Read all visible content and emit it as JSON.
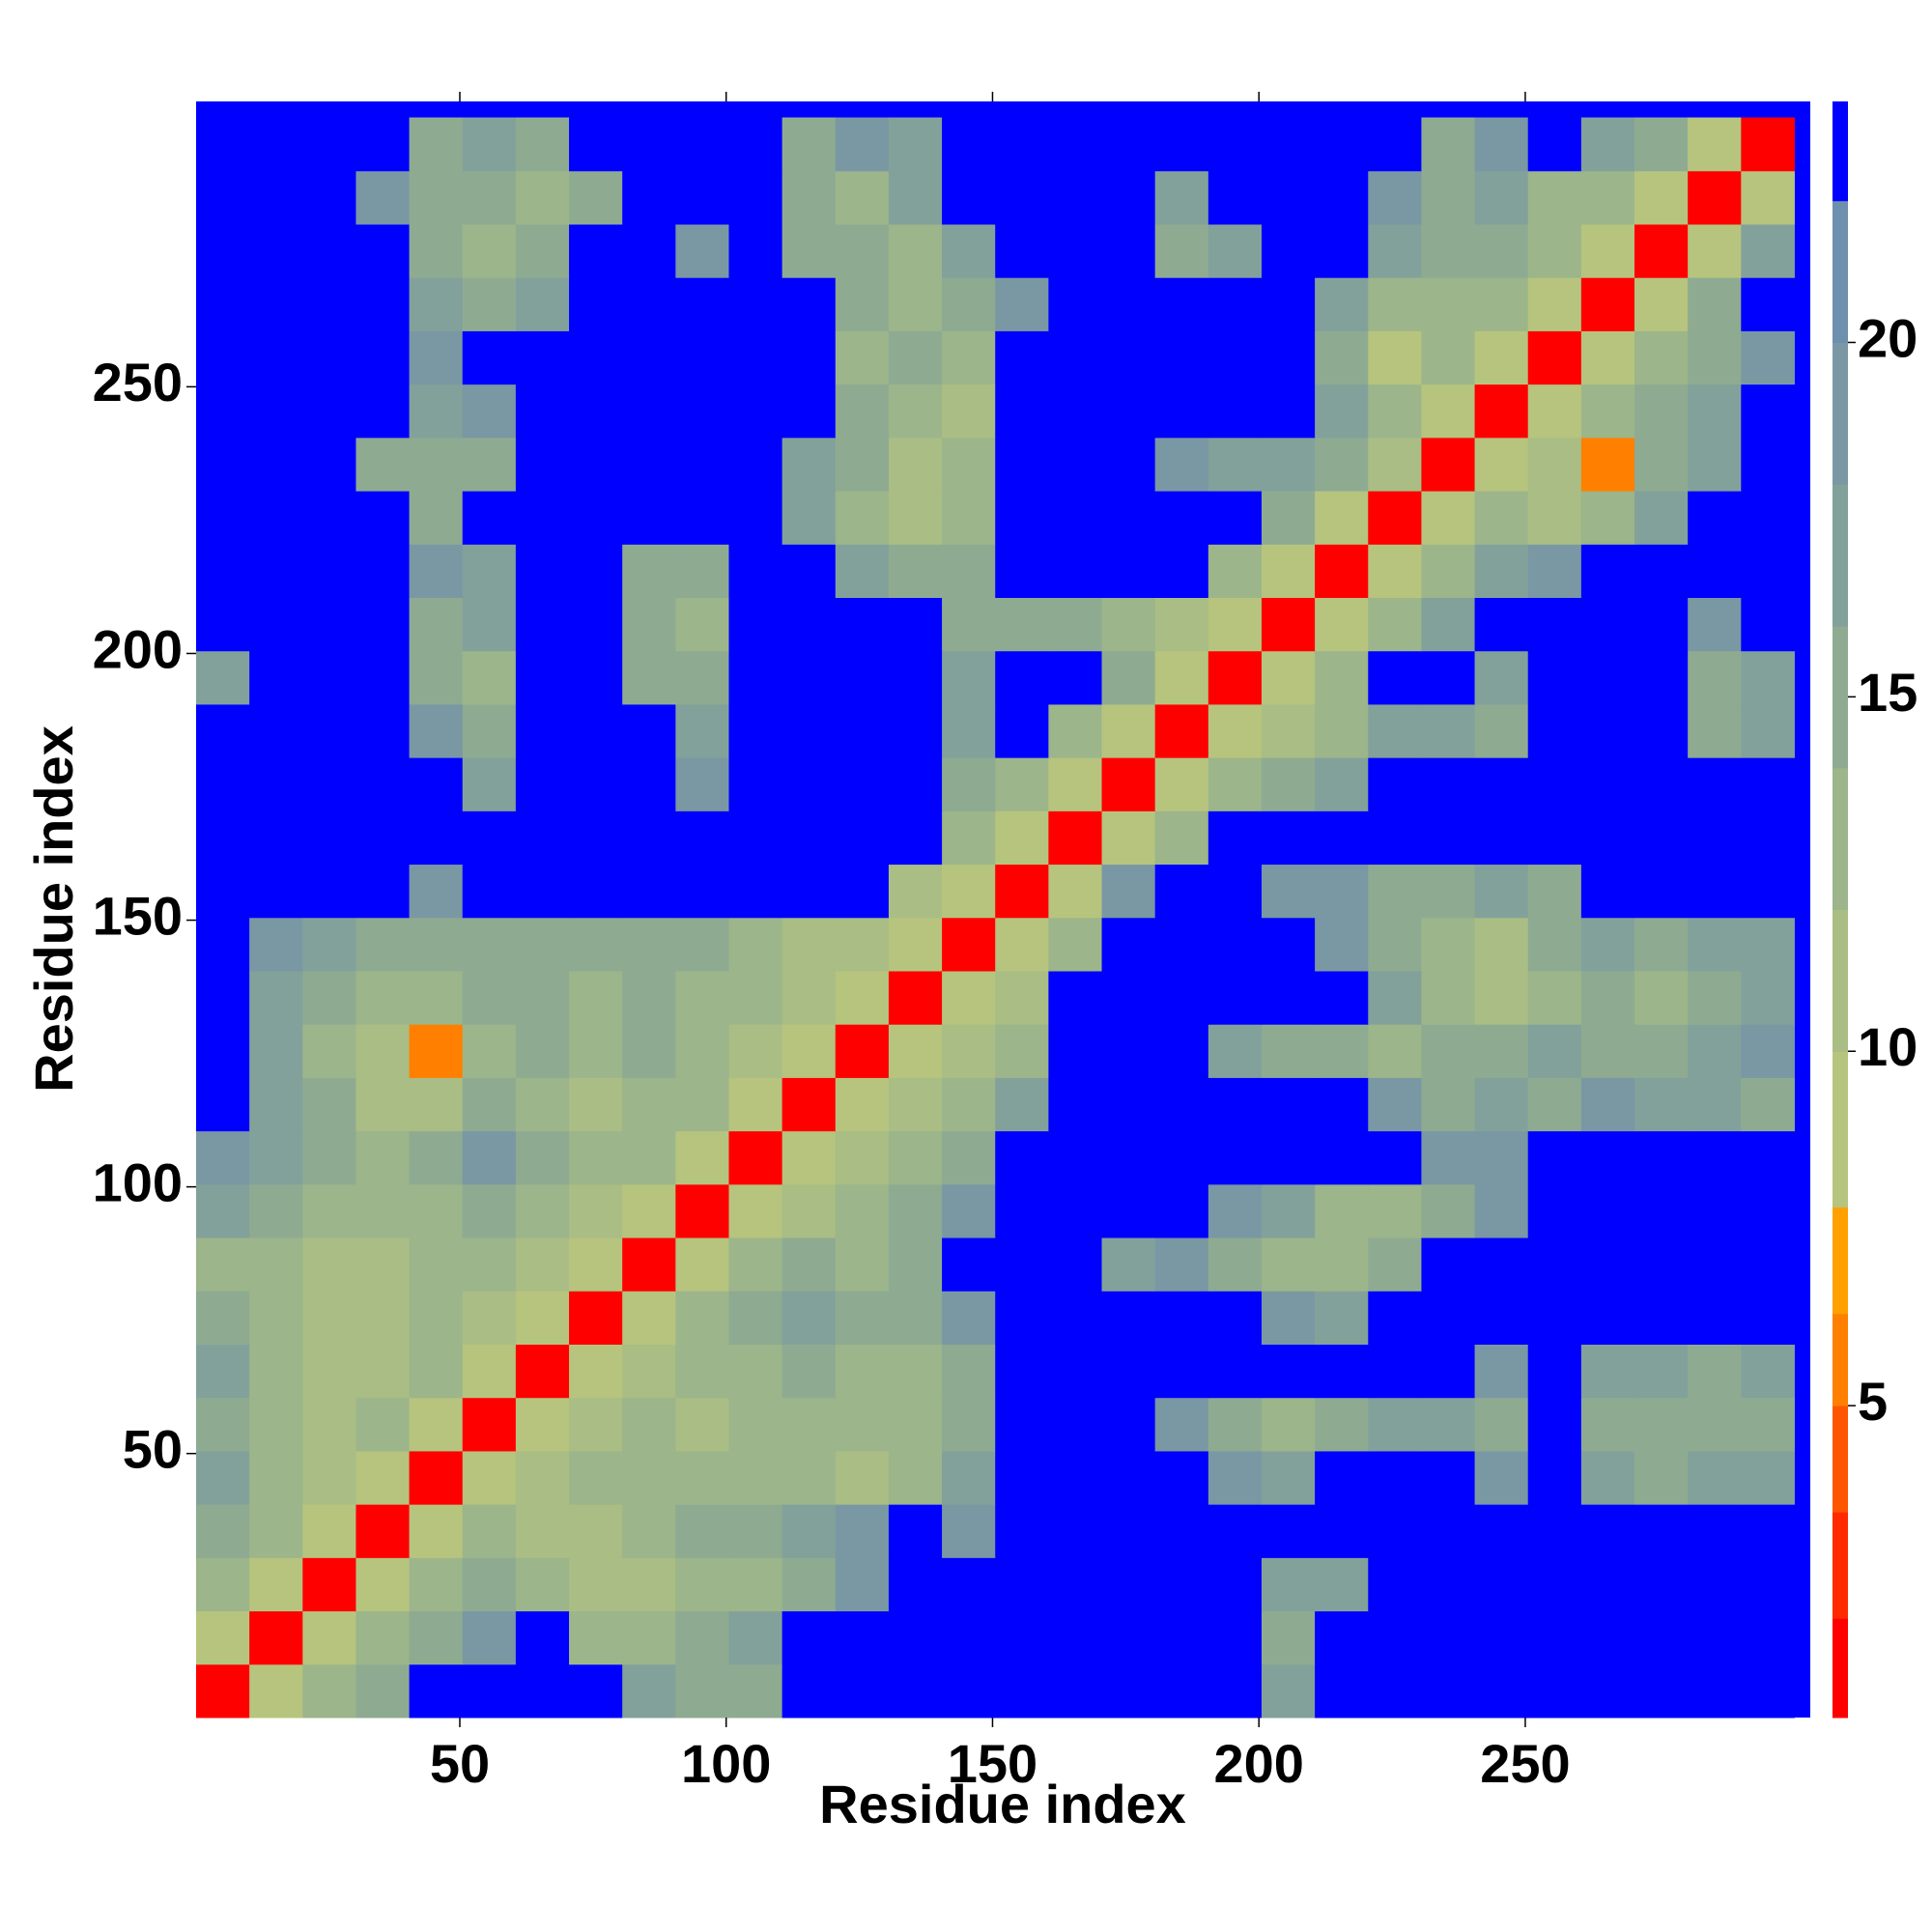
{
  "chart_data": {
    "type": "heatmap",
    "x_label": "Residue index",
    "y_label": "Residue index",
    "xlim": [
      0.5,
      303.5
    ],
    "ylim": [
      0.5,
      303.5
    ],
    "xticks": [
      50,
      100,
      150,
      200,
      250
    ],
    "yticks": [
      50,
      100,
      150,
      200,
      250
    ],
    "bin_edges": [
      0.5,
      10.5,
      20.5,
      30.5,
      40.5,
      50.5,
      60.5,
      70.5,
      80.5,
      90.5,
      100.5,
      110.5,
      120.5,
      130.5,
      140.5,
      150.5,
      160.5,
      170.5,
      180.5,
      190.5,
      200.5,
      210.5,
      220.5,
      230.5,
      240.5,
      250.5,
      260.5,
      270.5,
      280.5,
      290.5,
      300.5
    ],
    "background": "#0000ff",
    "colorbar": {
      "lim": [
        0.6,
        23.4
      ],
      "ticks": [
        5,
        10,
        15,
        20
      ],
      "edges": [
        0.6,
        2,
        3.5,
        5,
        6.3,
        7.8,
        10,
        12,
        14,
        16,
        18,
        20,
        22,
        23.4
      ],
      "colors": [
        "#ff0000",
        "#ff2a00",
        "#ff5500",
        "#ff8000",
        "#ffa000",
        "#b6c47e",
        "#a9bd84",
        "#9cb58a",
        "#8eab92",
        "#83a19b",
        "#7998a4",
        "#6f8fae",
        "#0000ff"
      ]
    },
    "z": [
      [
        2,
        8,
        14,
        16,
        24,
        24,
        24,
        24,
        17,
        16,
        16,
        24,
        24,
        24,
        24,
        24,
        24,
        24,
        24,
        24,
        17,
        24,
        24,
        24,
        24,
        24,
        24,
        24,
        24,
        24
      ],
      [
        8,
        2,
        8,
        14,
        16,
        19,
        24,
        14,
        14,
        16,
        17,
        24,
        24,
        24,
        24,
        24,
        24,
        24,
        24,
        24,
        16,
        24,
        24,
        24,
        24,
        24,
        24,
        24,
        24,
        24
      ],
      [
        14,
        8,
        2,
        8,
        14,
        16,
        14,
        12,
        12,
        14,
        14,
        16,
        19,
        24,
        24,
        24,
        24,
        24,
        24,
        24,
        17,
        17,
        24,
        24,
        24,
        24,
        24,
        24,
        24,
        24
      ],
      [
        16,
        14,
        8,
        2,
        8,
        14,
        12,
        12,
        14,
        16,
        16,
        17,
        19,
        24,
        19,
        24,
        24,
        24,
        24,
        24,
        24,
        24,
        24,
        24,
        24,
        24,
        24,
        24,
        24,
        24
      ],
      [
        17,
        14,
        12,
        8,
        2,
        8,
        12,
        14,
        14,
        14,
        14,
        14,
        12,
        14,
        17,
        24,
        24,
        24,
        24,
        19,
        17,
        24,
        24,
        24,
        19,
        24,
        17,
        16,
        17,
        17
      ],
      [
        16,
        14,
        12,
        14,
        8,
        2,
        8,
        12,
        14,
        12,
        14,
        14,
        14,
        14,
        16,
        24,
        24,
        24,
        19,
        16,
        14,
        16,
        17,
        17,
        16,
        24,
        16,
        16,
        16,
        16
      ],
      [
        17,
        14,
        12,
        12,
        14,
        8,
        2,
        8,
        12,
        14,
        14,
        16,
        14,
        14,
        16,
        24,
        24,
        24,
        24,
        24,
        24,
        24,
        24,
        24,
        19,
        24,
        17,
        17,
        16,
        17
      ],
      [
        16,
        14,
        12,
        12,
        14,
        12,
        8,
        2,
        8,
        14,
        16,
        17,
        16,
        16,
        19,
        24,
        24,
        24,
        24,
        24,
        19,
        17,
        24,
        24,
        24,
        24,
        24,
        24,
        24,
        24
      ],
      [
        14,
        14,
        12,
        12,
        14,
        14,
        12,
        8,
        2,
        8,
        14,
        16,
        14,
        16,
        24,
        24,
        24,
        17,
        19,
        16,
        14,
        14,
        16,
        24,
        24,
        24,
        24,
        24,
        24,
        24
      ],
      [
        17,
        16,
        14,
        14,
        14,
        16,
        14,
        12,
        8,
        2,
        8,
        12,
        14,
        16,
        19,
        24,
        24,
        24,
        24,
        19,
        17,
        14,
        14,
        16,
        19,
        24,
        24,
        24,
        24,
        24
      ],
      [
        19,
        17,
        16,
        14,
        16,
        19,
        16,
        14,
        14,
        8,
        2,
        8,
        12,
        14,
        16,
        24,
        24,
        24,
        24,
        24,
        24,
        24,
        24,
        19,
        19,
        24,
        24,
        24,
        24,
        24
      ],
      [
        24,
        17,
        16,
        12,
        12,
        16,
        14,
        12,
        14,
        14,
        8,
        2,
        8,
        12,
        14,
        17,
        24,
        24,
        24,
        24,
        24,
        24,
        19,
        16,
        17,
        16,
        19,
        17,
        17,
        16
      ],
      [
        24,
        17,
        14,
        12,
        6,
        14,
        16,
        14,
        16,
        14,
        12,
        8,
        2,
        8,
        12,
        14,
        24,
        24,
        24,
        17,
        16,
        16,
        14,
        16,
        16,
        17,
        16,
        16,
        17,
        19
      ],
      [
        24,
        17,
        16,
        14,
        14,
        16,
        16,
        14,
        16,
        14,
        14,
        12,
        8,
        2,
        8,
        12,
        24,
        24,
        24,
        24,
        24,
        24,
        17,
        14,
        12,
        14,
        16,
        14,
        16,
        17
      ],
      [
        24,
        19,
        17,
        16,
        16,
        16,
        16,
        16,
        16,
        16,
        14,
        12,
        12,
        8,
        2,
        8,
        14,
        24,
        24,
        24,
        24,
        19,
        16,
        14,
        12,
        16,
        17,
        16,
        17,
        17
      ],
      [
        24,
        24,
        24,
        24,
        19,
        24,
        24,
        24,
        24,
        24,
        24,
        24,
        24,
        12,
        8,
        2,
        8,
        19,
        24,
        24,
        19,
        19,
        16,
        16,
        17,
        16,
        24,
        24,
        24,
        24
      ],
      [
        24,
        24,
        24,
        24,
        24,
        24,
        24,
        24,
        24,
        24,
        24,
        24,
        24,
        24,
        14,
        8,
        2,
        8,
        14,
        24,
        24,
        24,
        24,
        24,
        24,
        24,
        24,
        24,
        24,
        24
      ],
      [
        24,
        24,
        24,
        24,
        24,
        17,
        24,
        24,
        24,
        19,
        24,
        24,
        24,
        24,
        16,
        14,
        8,
        2,
        8,
        14,
        16,
        17,
        24,
        24,
        24,
        24,
        24,
        24,
        24,
        24
      ],
      [
        24,
        24,
        24,
        24,
        19,
        16,
        24,
        24,
        24,
        17,
        24,
        24,
        24,
        24,
        17,
        24,
        14,
        8,
        2,
        8,
        12,
        14,
        17,
        17,
        16,
        24,
        24,
        24,
        16,
        17
      ],
      [
        17,
        24,
        24,
        24,
        16,
        14,
        24,
        24,
        16,
        16,
        24,
        24,
        24,
        24,
        17,
        24,
        24,
        16,
        8,
        2,
        8,
        14,
        24,
        24,
        17,
        24,
        24,
        24,
        16,
        17
      ],
      [
        24,
        24,
        24,
        24,
        16,
        17,
        24,
        24,
        16,
        14,
        24,
        24,
        24,
        24,
        16,
        16,
        16,
        14,
        12,
        8,
        2,
        8,
        14,
        17,
        24,
        24,
        24,
        24,
        19,
        24
      ],
      [
        24,
        24,
        24,
        24,
        19,
        17,
        24,
        24,
        16,
        16,
        24,
        24,
        17,
        16,
        16,
        24,
        24,
        24,
        24,
        14,
        8,
        2,
        8,
        14,
        17,
        19,
        24,
        24,
        24,
        24
      ],
      [
        24,
        24,
        24,
        24,
        16,
        24,
        24,
        24,
        24,
        24,
        24,
        17,
        14,
        12,
        14,
        24,
        24,
        24,
        24,
        24,
        16,
        8,
        2,
        8,
        14,
        12,
        14,
        17,
        24,
        24
      ],
      [
        24,
        24,
        24,
        16,
        16,
        16,
        24,
        24,
        24,
        24,
        24,
        17,
        16,
        12,
        14,
        24,
        24,
        24,
        19,
        17,
        17,
        16,
        12,
        2,
        8,
        12,
        6,
        16,
        17,
        24
      ],
      [
        24,
        24,
        24,
        24,
        17,
        19,
        24,
        24,
        24,
        24,
        24,
        24,
        16,
        14,
        12,
        24,
        24,
        24,
        24,
        24,
        24,
        17,
        14,
        8,
        2,
        8,
        14,
        16,
        17,
        24
      ],
      [
        24,
        24,
        24,
        24,
        19,
        24,
        24,
        24,
        24,
        24,
        24,
        24,
        14,
        16,
        14,
        24,
        24,
        24,
        24,
        24,
        24,
        16,
        8,
        14,
        8,
        2,
        8,
        14,
        16,
        19
      ],
      [
        24,
        24,
        24,
        24,
        17,
        16,
        17,
        24,
        24,
        24,
        24,
        24,
        16,
        14,
        16,
        19,
        24,
        24,
        24,
        24,
        24,
        17,
        14,
        14,
        14,
        8,
        2,
        8,
        16,
        24
      ],
      [
        24,
        24,
        24,
        24,
        16,
        14,
        16,
        24,
        24,
        19,
        24,
        16,
        16,
        14,
        17,
        24,
        24,
        24,
        16,
        17,
        24,
        24,
        17,
        16,
        16,
        14,
        8,
        2,
        8,
        17
      ],
      [
        24,
        24,
        24,
        19,
        16,
        16,
        14,
        16,
        24,
        24,
        24,
        16,
        14,
        17,
        24,
        24,
        24,
        24,
        17,
        24,
        24,
        24,
        19,
        16,
        17,
        14,
        14,
        8,
        2,
        8
      ],
      [
        24,
        24,
        24,
        24,
        16,
        17,
        16,
        24,
        24,
        24,
        24,
        16,
        19,
        17,
        24,
        24,
        24,
        24,
        24,
        24,
        24,
        24,
        24,
        16,
        19,
        24,
        17,
        16,
        8,
        2
      ]
    ]
  }
}
